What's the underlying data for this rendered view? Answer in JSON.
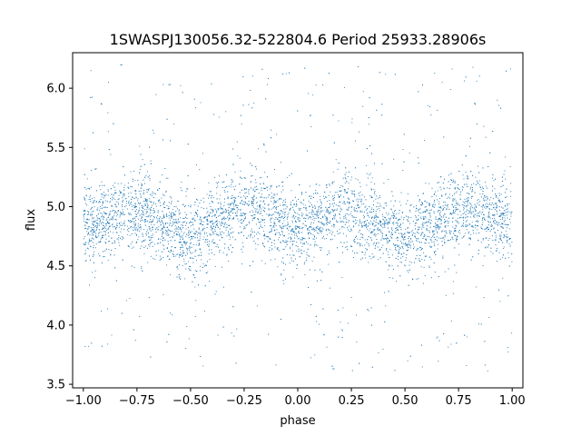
{
  "chart_data": {
    "type": "scatter",
    "title": "1SWASPJ130056.32-522804.6 Period 25933.28906s",
    "xlabel": "phase",
    "ylabel": "flux",
    "xlim": [
      -1.05,
      1.05
    ],
    "ylim": [
      3.47,
      6.3
    ],
    "x_ticks": [
      -1.0,
      -0.75,
      -0.5,
      -0.25,
      0.0,
      0.25,
      0.5,
      0.75,
      1.0
    ],
    "x_tick_labels": [
      "−1.00",
      "−0.75",
      "−0.50",
      "−0.25",
      "0.00",
      "0.25",
      "0.50",
      "0.75",
      "1.00"
    ],
    "y_ticks": [
      3.5,
      4.0,
      4.5,
      5.0,
      5.5,
      6.0
    ],
    "y_tick_labels": [
      "3.5",
      "4.0",
      "4.5",
      "5.0",
      "5.5",
      "6.0"
    ],
    "grid": false,
    "legend": "none",
    "point_color": "#1f77b4",
    "x_range": [
      -1.0,
      1.0
    ],
    "y_range": [
      3.6,
      6.2
    ],
    "trend_points": {
      "x": [
        -1.0,
        -0.9,
        -0.8,
        -0.7,
        -0.6,
        -0.5,
        -0.4,
        -0.3,
        -0.2,
        -0.1,
        0.0,
        0.1,
        0.2,
        0.3,
        0.4,
        0.5,
        0.6,
        0.7,
        0.8,
        0.9,
        1.0
      ],
      "y": [
        4.82,
        4.9,
        4.96,
        4.94,
        4.82,
        4.72,
        4.86,
        4.96,
        4.98,
        4.9,
        4.8,
        4.88,
        4.96,
        4.94,
        4.84,
        4.72,
        4.82,
        4.94,
        4.98,
        4.92,
        4.82
      ]
    }
  }
}
